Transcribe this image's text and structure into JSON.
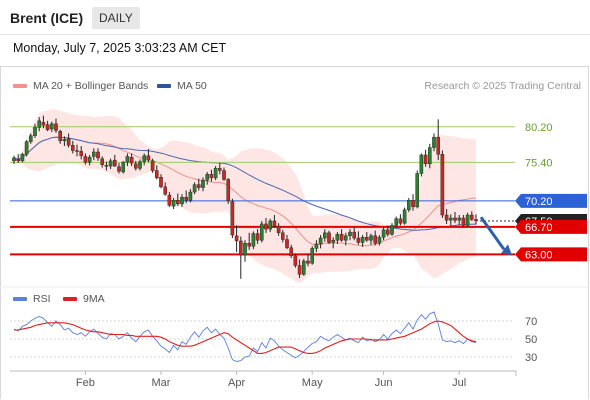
{
  "header": {
    "title": "Brent (ICE)",
    "interval": "DAILY",
    "datetime": "Monday, July 7, 2025 3:03:23 AM CET",
    "credit": "Research © 2025 Trading Central"
  },
  "legend_main": [
    {
      "label": "MA 20 + Bollinger Bands",
      "color": "#f4908a"
    },
    {
      "label": "MA 50",
      "color": "#2f5597"
    }
  ],
  "legend_rsi": [
    {
      "label": "RSI",
      "color": "#5b7fdd"
    },
    {
      "label": "9MA",
      "color": "#e02020"
    }
  ],
  "chart_data": [
    {
      "type": "candlestick",
      "title": "Brent (ICE)",
      "x_ticks": [
        "Feb",
        "Mar",
        "Apr",
        "May",
        "Jun",
        "Jul"
      ],
      "ylim": [
        59.0,
        83.0
      ],
      "price_labels": [
        {
          "value": 80.2,
          "label": "80.20",
          "style": "green-line"
        },
        {
          "value": 75.4,
          "label": "75.40",
          "style": "green-line"
        },
        {
          "value": 70.2,
          "label": "70.20",
          "style": "blue-badge"
        },
        {
          "value": 67.5,
          "label": "67.50",
          "style": "dark-badge-current"
        },
        {
          "value": 66.7,
          "label": "66.70",
          "style": "red-badge"
        },
        {
          "value": 63.0,
          "label": "63.00",
          "style": "red-badge"
        }
      ],
      "forecast_arrow": {
        "from": 68.0,
        "to": 63.0
      },
      "candles": [
        [
          75.6,
          76.3,
          75.2,
          76.0
        ],
        [
          75.8,
          76.5,
          75.3,
          75.6
        ],
        [
          75.6,
          76.7,
          75.4,
          76.5
        ],
        [
          76.5,
          78.4,
          76.2,
          78.2
        ],
        [
          78.2,
          79.3,
          77.9,
          79.0
        ],
        [
          79.0,
          80.6,
          78.7,
          80.1
        ],
        [
          80.1,
          81.5,
          79.6,
          81.0
        ],
        [
          80.8,
          81.7,
          80.0,
          80.4
        ],
        [
          80.5,
          81.0,
          79.6,
          79.8
        ],
        [
          79.9,
          80.9,
          79.5,
          80.6
        ],
        [
          80.6,
          81.3,
          79.4,
          79.7
        ],
        [
          79.6,
          79.8,
          77.9,
          78.3
        ],
        [
          78.3,
          78.9,
          77.6,
          78.5
        ],
        [
          78.6,
          79.3,
          77.4,
          77.7
        ],
        [
          77.7,
          78.3,
          76.6,
          77.0
        ],
        [
          77.0,
          77.8,
          76.2,
          76.9
        ],
        [
          76.9,
          77.6,
          75.8,
          76.3
        ],
        [
          76.2,
          76.6,
          75.1,
          75.4
        ],
        [
          75.4,
          76.4,
          75.0,
          76.1
        ],
        [
          76.2,
          77.3,
          75.7,
          76.8
        ],
        [
          76.8,
          77.3,
          75.6,
          76.0
        ],
        [
          75.9,
          76.2,
          74.7,
          75.1
        ],
        [
          75.0,
          75.5,
          74.3,
          74.9
        ],
        [
          74.9,
          75.9,
          74.5,
          75.6
        ],
        [
          75.7,
          76.4,
          74.8,
          74.9
        ],
        [
          74.8,
          75.3,
          73.9,
          74.2
        ],
        [
          74.1,
          75.6,
          73.9,
          75.4
        ],
        [
          75.4,
          76.6,
          74.9,
          76.2
        ],
        [
          76.1,
          76.6,
          74.9,
          75.3
        ],
        [
          75.2,
          75.6,
          74.3,
          74.6
        ],
        [
          74.6,
          75.8,
          74.3,
          75.5
        ],
        [
          75.5,
          76.6,
          75.0,
          76.3
        ],
        [
          76.3,
          77.2,
          75.4,
          75.7
        ],
        [
          75.6,
          75.9,
          74.0,
          74.3
        ],
        [
          74.3,
          75.0,
          73.1,
          73.3
        ],
        [
          73.4,
          73.8,
          71.9,
          72.1
        ],
        [
          72.1,
          72.7,
          70.9,
          71.1
        ],
        [
          71.0,
          71.4,
          69.4,
          69.6
        ],
        [
          69.5,
          70.6,
          69.1,
          70.3
        ],
        [
          70.3,
          71.2,
          69.5,
          69.8
        ],
        [
          69.8,
          71.1,
          69.4,
          70.7
        ],
        [
          70.7,
          71.6,
          69.9,
          70.3
        ],
        [
          70.3,
          71.8,
          70.0,
          71.4
        ],
        [
          71.4,
          72.7,
          71.1,
          72.4
        ],
        [
          72.4,
          73.2,
          71.6,
          72.0
        ],
        [
          72.0,
          73.4,
          71.5,
          73.0
        ],
        [
          73.0,
          74.1,
          72.4,
          73.8
        ],
        [
          73.8,
          74.4,
          72.8,
          73.3
        ],
        [
          73.3,
          74.9,
          73.0,
          74.6
        ],
        [
          74.6,
          75.3,
          73.8,
          74.3
        ],
        [
          74.3,
          74.7,
          72.9,
          73.1
        ],
        [
          73.1,
          73.3,
          69.8,
          70.2
        ],
        [
          70.1,
          70.5,
          65.2,
          65.6
        ],
        [
          65.5,
          66.9,
          63.3,
          64.8
        ],
        [
          64.8,
          65.4,
          59.7,
          62.9
        ],
        [
          62.9,
          64.9,
          62.0,
          64.5
        ],
        [
          64.5,
          65.9,
          63.6,
          64.1
        ],
        [
          64.1,
          66.1,
          63.7,
          65.8
        ],
        [
          65.8,
          66.4,
          64.4,
          64.9
        ],
        [
          64.9,
          67.5,
          64.6,
          67.1
        ],
        [
          67.1,
          67.9,
          65.9,
          66.4
        ],
        [
          66.4,
          67.8,
          66.0,
          67.5
        ],
        [
          67.5,
          68.3,
          66.6,
          66.8
        ],
        [
          66.8,
          67.2,
          65.5,
          65.9
        ],
        [
          65.9,
          66.3,
          64.6,
          65.0
        ],
        [
          65.0,
          65.6,
          63.7,
          63.9
        ],
        [
          63.9,
          64.3,
          62.5,
          62.8
        ],
        [
          62.8,
          63.1,
          61.2,
          61.5
        ],
        [
          61.5,
          62.3,
          59.8,
          60.3
        ],
        [
          60.3,
          62.4,
          60.1,
          62.1
        ],
        [
          62.1,
          63.1,
          61.4,
          61.8
        ],
        [
          61.8,
          64.1,
          61.6,
          63.8
        ],
        [
          63.8,
          64.9,
          63.3,
          64.4
        ],
        [
          64.4,
          65.6,
          63.8,
          65.2
        ],
        [
          65.2,
          66.4,
          64.7,
          65.9
        ],
        [
          65.9,
          66.2,
          64.4,
          64.6
        ],
        [
          64.6,
          65.3,
          63.8,
          64.9
        ],
        [
          64.9,
          66.0,
          64.4,
          65.7
        ],
        [
          65.7,
          66.4,
          64.7,
          64.9
        ],
        [
          64.9,
          65.9,
          64.2,
          65.5
        ],
        [
          65.5,
          66.4,
          64.9,
          66.0
        ],
        [
          66.0,
          66.7,
          64.9,
          65.2
        ],
        [
          65.2,
          66.1,
          64.3,
          64.6
        ],
        [
          64.6,
          65.6,
          64.0,
          65.3
        ],
        [
          65.3,
          66.0,
          64.7,
          64.9
        ],
        [
          64.9,
          65.8,
          64.3,
          65.5
        ],
        [
          65.5,
          66.2,
          64.2,
          64.5
        ],
        [
          64.5,
          65.6,
          64.2,
          65.3
        ],
        [
          65.3,
          66.6,
          64.9,
          66.3
        ],
        [
          66.3,
          66.9,
          65.4,
          65.7
        ],
        [
          65.7,
          67.2,
          65.5,
          66.9
        ],
        [
          66.9,
          68.1,
          66.6,
          67.8
        ],
        [
          67.8,
          68.4,
          66.9,
          67.2
        ],
        [
          67.2,
          69.3,
          67.0,
          69.0
        ],
        [
          69.0,
          70.6,
          68.7,
          70.3
        ],
        [
          70.3,
          71.1,
          68.9,
          69.4
        ],
        [
          69.4,
          74.3,
          69.2,
          73.9
        ],
        [
          73.9,
          76.6,
          73.5,
          76.4
        ],
        [
          76.4,
          77.1,
          74.8,
          75.2
        ],
        [
          75.2,
          77.9,
          74.6,
          77.4
        ],
        [
          77.4,
          79.3,
          76.9,
          78.8
        ],
        [
          78.8,
          81.2,
          75.7,
          76.5
        ],
        [
          76.5,
          77.0,
          67.9,
          68.3
        ],
        [
          68.3,
          69.1,
          67.1,
          67.6
        ],
        [
          67.6,
          68.4,
          66.8,
          67.9
        ],
        [
          67.9,
          68.7,
          67.2,
          67.6
        ],
        [
          67.6,
          68.3,
          66.9,
          67.9
        ],
        [
          67.9,
          68.3,
          66.6,
          66.9
        ],
        [
          66.9,
          68.6,
          66.7,
          68.3
        ],
        [
          68.3,
          68.8,
          67.5,
          67.7
        ],
        [
          67.7,
          68.4,
          67.0,
          67.5
        ]
      ]
    },
    {
      "type": "line",
      "title": "RSI",
      "x_ticks": [
        "Feb",
        "Mar",
        "Apr",
        "May",
        "Jun",
        "Jul"
      ],
      "ylim": [
        20,
        80
      ],
      "y_ticks": [
        70,
        50,
        30
      ],
      "series": [
        {
          "name": "RSI",
          "values": [
            61,
            59,
            64,
            66,
            70,
            73,
            75,
            73,
            68,
            64,
            70,
            66,
            60,
            62,
            57,
            55,
            57,
            53,
            58,
            61,
            56,
            52,
            50,
            56,
            55,
            50,
            53,
            57,
            51,
            47,
            53,
            58,
            60,
            53,
            48,
            42,
            39,
            35,
            43,
            38,
            47,
            44,
            52,
            58,
            52,
            59,
            63,
            57,
            61,
            55,
            51,
            40,
            27,
            25,
            26,
            30,
            31,
            40,
            36,
            46,
            40,
            51,
            48,
            42,
            38,
            35,
            32,
            29,
            32,
            36,
            41,
            45,
            47,
            53,
            50,
            48,
            52,
            55,
            52,
            49,
            51,
            48,
            46,
            52,
            48,
            50,
            47,
            49,
            55,
            50,
            56,
            60,
            56,
            62,
            68,
            61,
            71,
            77,
            72,
            78,
            80,
            67,
            49,
            47,
            48,
            46,
            48,
            45,
            50,
            47,
            46
          ]
        },
        {
          "name": "9MA",
          "values": [
            60,
            60,
            61,
            62,
            63,
            65,
            66,
            67,
            68,
            68,
            68,
            68,
            68,
            67,
            66,
            64,
            62,
            60,
            59,
            58,
            58,
            57,
            56,
            55,
            55,
            55,
            55,
            54,
            54,
            53,
            53,
            53,
            53,
            53,
            53,
            52,
            50,
            47,
            45,
            43,
            42,
            42,
            42,
            43,
            45,
            47,
            49,
            51,
            53,
            55,
            57,
            56,
            52,
            49,
            46,
            43,
            40,
            37,
            34,
            34,
            35,
            37,
            39,
            41,
            41,
            41,
            41,
            39,
            37,
            35,
            34,
            34,
            35,
            37,
            40,
            42,
            44,
            46,
            48,
            49,
            50,
            50,
            50,
            50,
            50,
            49,
            49,
            49,
            49,
            49,
            50,
            51,
            52,
            53,
            55,
            57,
            59,
            61,
            64,
            67,
            69,
            70,
            69,
            67,
            65,
            61,
            57,
            53,
            50,
            48,
            47
          ]
        }
      ]
    }
  ]
}
